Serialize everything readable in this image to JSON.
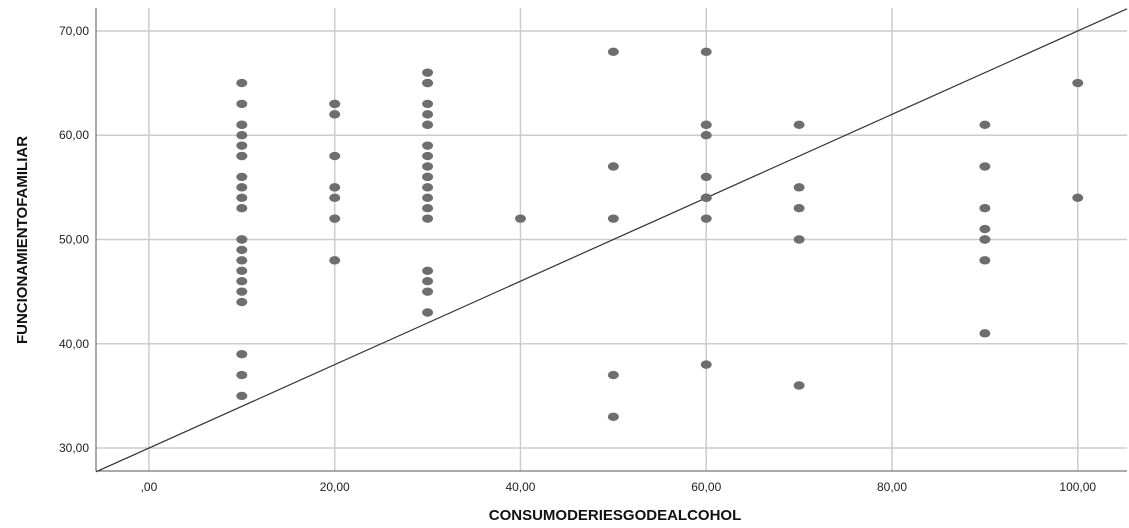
{
  "chart_data": {
    "type": "scatter",
    "title": "",
    "xlabel": "CONSUMODERIESGODEALCOHOL",
    "ylabel": "FUNCIONAMIENTOFAMILIAR",
    "xlim": [
      -5.7,
      105.3
    ],
    "ylim": [
      27.8,
      72.2
    ],
    "xticks": [
      0,
      20,
      40,
      60,
      80,
      100
    ],
    "xtick_labels": [
      ",00",
      "20,00",
      "40,00",
      "60,00",
      "80,00",
      "100,00"
    ],
    "yticks": [
      30,
      40,
      50,
      60,
      70
    ],
    "ytick_labels": [
      "30,00",
      "40,00",
      "50,00",
      "60,00",
      "70,00"
    ],
    "grid": true,
    "legend": "none",
    "colors": {
      "points": "#6e6e6e",
      "grid": "#cccccc",
      "line": "#333333",
      "axis": "#555555"
    },
    "reference_line": {
      "x": [
        -5.7,
        105.3
      ],
      "y": [
        27.72,
        72.12
      ]
    },
    "series": [
      {
        "x": [
          10,
          10,
          10,
          10,
          10,
          10,
          10,
          10,
          10,
          10,
          10,
          10,
          10,
          10,
          10,
          10,
          10,
          10,
          10,
          10,
          10,
          10,
          10,
          20,
          20,
          20,
          20,
          20,
          20,
          20,
          20,
          30,
          30,
          30,
          30,
          30,
          30,
          30,
          30,
          30,
          30,
          30,
          30,
          30,
          30,
          30,
          30,
          30,
          30,
          30,
          30,
          40,
          50,
          50,
          50,
          50,
          50,
          60,
          60,
          60,
          60,
          60,
          60,
          60,
          60,
          60,
          70,
          70,
          70,
          70,
          70,
          90,
          90,
          90,
          90,
          90,
          90,
          90,
          90,
          100,
          100
        ],
        "y": [
          65,
          63,
          61,
          61,
          60,
          59,
          58,
          56,
          55,
          54,
          53,
          50,
          50,
          49,
          48,
          47,
          46,
          45,
          44,
          39,
          37,
          35,
          58,
          63,
          62,
          58,
          55,
          54,
          52,
          48,
          63,
          66,
          65,
          63,
          62,
          61,
          61,
          59,
          58,
          57,
          56,
          56,
          54,
          53,
          52,
          47,
          46,
          45,
          43,
          65,
          55,
          52,
          68,
          57,
          52,
          37,
          33,
          68,
          61,
          60,
          56,
          54,
          54,
          52,
          38,
          61,
          61,
          55,
          53,
          50,
          36,
          61,
          57,
          53,
          51,
          50,
          50,
          48,
          41,
          65,
          54
        ]
      }
    ]
  }
}
